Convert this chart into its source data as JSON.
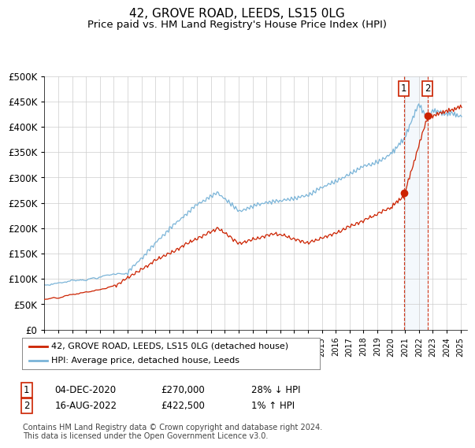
{
  "title": "42, GROVE ROAD, LEEDS, LS15 0LG",
  "subtitle": "Price paid vs. HM Land Registry's House Price Index (HPI)",
  "title_fontsize": 11,
  "subtitle_fontsize": 9.5,
  "hpi_color": "#7ab4d8",
  "price_color": "#cc2200",
  "background_color": "#ffffff",
  "grid_color": "#cccccc",
  "plot_bg_color": "#ffffff",
  "legend_label_hpi": "HPI: Average price, detached house, Leeds",
  "legend_label_price": "42, GROVE ROAD, LEEDS, LS15 0LG (detached house)",
  "transaction1_date_label": "04-DEC-2020",
  "transaction1_price_label": "£270,000",
  "transaction1_hpi_label": "28% ↓ HPI",
  "transaction2_date_label": "16-AUG-2022",
  "transaction2_price_label": "£422,500",
  "transaction2_hpi_label": "1% ↑ HPI",
  "transaction1_year": 2020.92,
  "transaction1_price": 270000,
  "transaction2_year": 2022.62,
  "transaction2_price": 422500,
  "ylim": [
    0,
    500000
  ],
  "xlim_start": 1995,
  "xlim_end": 2025.5,
  "footer": "Contains HM Land Registry data © Crown copyright and database right 2024.\nThis data is licensed under the Open Government Licence v3.0."
}
